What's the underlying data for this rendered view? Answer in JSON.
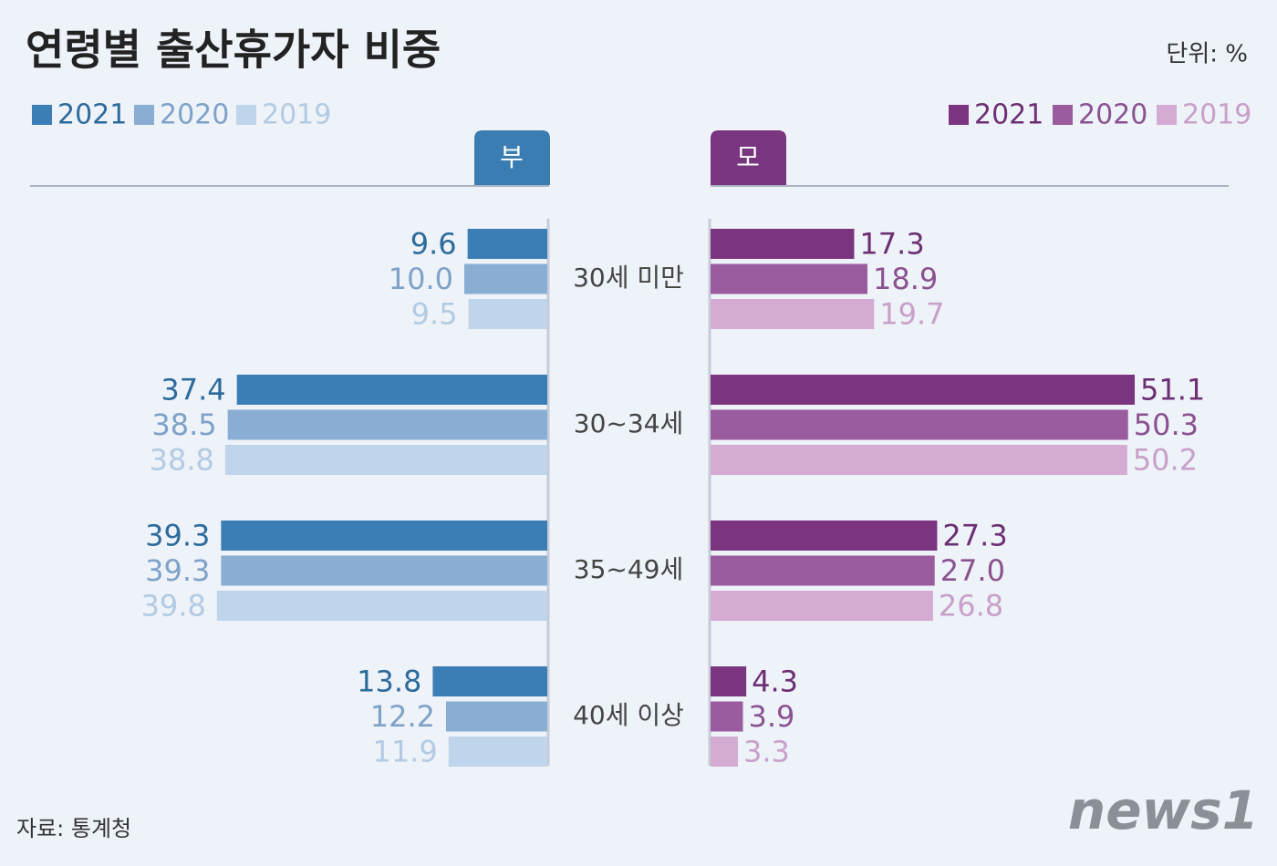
{
  "chart_data": {
    "type": "butterfly-bar",
    "title": "연령별 출산휴가자 비중",
    "unit": "단위: %",
    "source": "자료: 통계청",
    "logo": "news1",
    "categories": [
      "30세 미만",
      "30~34세",
      "35~49세",
      "40세 이상"
    ],
    "groups": [
      {
        "name": "부",
        "color": "#3a7db3",
        "series": [
          {
            "name": "2021",
            "color": "#3b7db5",
            "label_color": "#2c6b9b",
            "values": [
              9.6,
              37.4,
              39.3,
              13.8
            ],
            "value_labels": [
              "9.6",
              "37.4",
              "39.3",
              "13.8"
            ]
          },
          {
            "name": "2020",
            "color": "#8aadd3",
            "label_color": "#7ea2c8",
            "values": [
              10.0,
              38.5,
              39.3,
              12.2
            ],
            "value_labels": [
              "10.0",
              "38.5",
              "39.3",
              "12.2"
            ]
          },
          {
            "name": "2019",
            "color": "#bed5eb",
            "label_color": "#b2cbe3",
            "values": [
              9.5,
              38.8,
              39.8,
              11.9
            ],
            "value_labels": [
              "9.5",
              "38.8",
              "39.8",
              "11.9"
            ]
          }
        ]
      },
      {
        "name": "모",
        "color": "#7a3580",
        "series": [
          {
            "name": "2021",
            "color": "#7b347f",
            "label_color": "#6d2f73",
            "values": [
              17.3,
              51.1,
              27.3,
              4.3
            ],
            "value_labels": [
              "17.3",
              "51.1",
              "27.3",
              "4.3"
            ]
          },
          {
            "name": "2020",
            "color": "#9a5c9e",
            "label_color": "#8b5290",
            "values": [
              18.9,
              50.3,
              27.0,
              3.9
            ],
            "value_labels": [
              "18.9",
              "50.3",
              "27.0",
              "3.9"
            ]
          },
          {
            "name": "2019",
            "color": "#d3abd3",
            "label_color": "#c9a0c9",
            "values": [
              19.7,
              50.2,
              26.8,
              3.3
            ],
            "value_labels": [
              "19.7",
              "50.2",
              "26.8",
              "3.3"
            ]
          }
        ]
      }
    ]
  }
}
